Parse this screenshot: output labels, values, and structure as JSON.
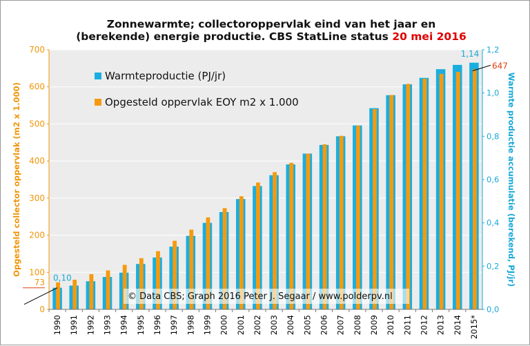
{
  "chart_data": {
    "type": "bar",
    "title_line1": "Zonnewarmte; collectoroppervlak  eind van het jaar en",
    "title_line2": "(berekende) energie productie. CBS StatLine status ",
    "title_date": "20 mei 2016",
    "ylabel_left": "Opgesteld collector oppervlak (m2 x 1.000)",
    "ylabel_right": "Warmte productie accumulatie (berekend, PJ/jr)",
    "ylim_left": [
      0,
      700
    ],
    "ylim_right": [
      0,
      1.2
    ],
    "left_ticks": [
      "0",
      "100",
      "200",
      "300",
      "400",
      "500",
      "600",
      "700"
    ],
    "right_ticks": [
      "0,0",
      "0,2",
      "0,4",
      "0,6",
      "0,8",
      "1,0",
      "1,2"
    ],
    "categories": [
      "1990",
      "1991",
      "1992",
      "1993",
      "1994",
      "1995",
      "1996",
      "1997",
      "1998",
      "1999",
      "2000",
      "2001",
      "2002",
      "2003",
      "2004",
      "2005",
      "2006",
      "2007",
      "2008",
      "2009",
      "2010",
      "2011",
      "2012",
      "2013",
      "2014",
      "2015*"
    ],
    "series": [
      {
        "name": "Warmteproductie (PJ/jr)",
        "axis": "right",
        "color": "#19aee0",
        "values": [
          0.1,
          0.11,
          0.13,
          0.15,
          0.17,
          0.21,
          0.24,
          0.29,
          0.34,
          0.4,
          0.45,
          0.51,
          0.57,
          0.62,
          0.67,
          0.72,
          0.76,
          0.8,
          0.85,
          0.93,
          0.99,
          1.04,
          1.07,
          1.11,
          1.13,
          1.14
        ]
      },
      {
        "name": "Opgesteld oppervlak EOY m2 x 1.000",
        "axis": "left",
        "color": "#f59a0e",
        "values": [
          73,
          80,
          95,
          105,
          120,
          138,
          157,
          185,
          215,
          248,
          273,
          305,
          342,
          370,
          395,
          420,
          445,
          468,
          495,
          540,
          578,
          608,
          622,
          635,
          640,
          647
        ]
      }
    ],
    "annotations": {
      "left_min_label": "73",
      "right_min_label": "0,10",
      "right_max_label": "1,14",
      "left_max_label": "647"
    },
    "legend_position": "top-left",
    "grid": true
  },
  "credit": "© Data CBS;  Graph  2016  Peter J. Segaar  / www.polderpv.nl",
  "colors": {
    "left_axis": "#f0960a",
    "right_axis": "#19a8d8",
    "annotation_red": "#e04010",
    "plot_bg": "#ececec"
  }
}
